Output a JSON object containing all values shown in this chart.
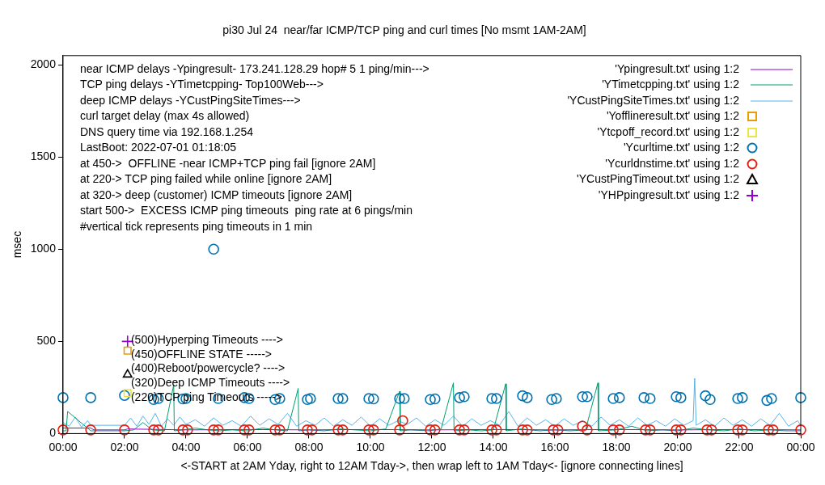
{
  "chart_data": {
    "type": "line",
    "title": "pi30 Jul 24  near/far ICMP/TCP ping and curl times [No msmt 1AM-2AM]",
    "xlabel": "<-START at 2AM Yday, right to 12AM Tday->, then wrap left to 1AM Tday<- [ignore connecting lines]",
    "ylabel": "msec",
    "xlim": [
      0,
      24
    ],
    "xticks": [
      {
        "value": 0,
        "label": "00:00"
      },
      {
        "value": 2,
        "label": "02:00"
      },
      {
        "value": 4,
        "label": "04:00"
      },
      {
        "value": 6,
        "label": "06:00"
      },
      {
        "value": 8,
        "label": "08:00"
      },
      {
        "value": 10,
        "label": "10:00"
      },
      {
        "value": 12,
        "label": "12:00"
      },
      {
        "value": 14,
        "label": "14:00"
      },
      {
        "value": 16,
        "label": "16:00"
      },
      {
        "value": 18,
        "label": "18:00"
      },
      {
        "value": 20,
        "label": "20:00"
      },
      {
        "value": 22,
        "label": "22:00"
      },
      {
        "value": 24,
        "label": "00:00"
      }
    ],
    "ylim": [
      0,
      2050
    ],
    "yticks": [
      0,
      500,
      1000,
      1500,
      2000
    ],
    "grid": false,
    "legend": "top right",
    "annotations": [
      "near ICMP delays -Ypingresult- 173.241.128.29 hop# 5 1 ping/min--->",
      "TCP ping delays -YTimetcpping- Top100Web--->",
      "deep ICMP delays -YCustPingSiteTimes--->",
      "curl target delay (max 4s allowed)",
      "DNS query time via 192.168.1.254",
      "LastBoot: 2022-07-01 01:18:05",
      "at 450->  OFFLINE -near ICMP+TCP ping fail [ignore 2AM]",
      "at 220-> TCP ping failed while online [ignore 2AM]",
      "at 320-> deep (customer) ICMP timeouts [ignore 2AM]",
      "start 500->  EXCESS ICMP ping timeouts  ping rate at 6 pings/min",
      "#vertical tick represents ping timeouts in 1 min",
      "(500)Hyperping Timeouts ---->",
      "(450)OFFLINE STATE ----->",
      "(400)Reboot/powercycle? ---->",
      "(320)Deep ICMP Timeouts ---->",
      "(220)TCP ping Timeouts ----->"
    ],
    "series": [
      {
        "name": "'Ypingresult.txt' using 1:2",
        "color": "#9400d3",
        "x": [
          0,
          0.9,
          1.0,
          2.0,
          2.1,
          4,
          6,
          8,
          10,
          12,
          14,
          16,
          18,
          20,
          22,
          24
        ],
        "values": [
          30,
          30,
          20,
          20,
          25,
          20,
          22,
          20,
          22,
          20,
          22,
          20,
          22,
          20,
          22,
          20
        ]
      },
      {
        "name": "'YTimetcpping.txt' using 1:2",
        "color": "#009e73",
        "x": [
          0,
          0.1,
          0.15,
          0.9,
          1.0,
          2.0,
          2.3,
          2.6,
          2.9,
          3.3,
          3.6,
          3.62,
          3.9,
          4.3,
          4.7,
          5.1,
          5.5,
          6.0,
          6.5,
          6.9,
          7.3,
          7.65,
          7.67,
          8.0,
          8.5,
          9.0,
          9.5,
          10.0,
          10.5,
          10.95,
          10.97,
          11.3,
          11.9,
          12.3,
          12.7,
          12.72,
          13.2,
          13.6,
          14.0,
          14.4,
          14.42,
          14.9,
          15.5,
          16.0,
          16.5,
          17.0,
          17.4,
          17.42,
          18.0,
          18.5,
          19.0,
          19.5,
          20.0,
          20.5,
          21.0,
          21.5,
          22.0,
          22.5,
          23.0,
          23.5,
          24.0
        ],
        "values": [
          15,
          15,
          120,
          15,
          15,
          15,
          20,
          60,
          20,
          15,
          265,
          15,
          20,
          30,
          20,
          15,
          20,
          15,
          30,
          20,
          15,
          245,
          15,
          20,
          15,
          25,
          20,
          15,
          25,
          230,
          15,
          20,
          15,
          25,
          275,
          15,
          20,
          15,
          20,
          270,
          15,
          25,
          15,
          20,
          15,
          20,
          275,
          15,
          20,
          40,
          15,
          20,
          15,
          30,
          20,
          15,
          25,
          15,
          20,
          15,
          15
        ]
      },
      {
        "name": "'YCustPingSiteTimes.txt' using 1:2",
        "color": "#56b4e9",
        "x": [
          0,
          0.2,
          0.4,
          0.6,
          0.8,
          0.9,
          2.0,
          2.2,
          2.4,
          2.6,
          2.8,
          3.0,
          3.2,
          3.4,
          3.6,
          3.8,
          4.0,
          4.3,
          4.6,
          4.9,
          5.2,
          5.5,
          5.8,
          6.1,
          6.4,
          6.7,
          7.0,
          7.3,
          7.6,
          7.9,
          8.2,
          8.5,
          8.8,
          9.1,
          9.4,
          9.7,
          10.0,
          10.3,
          10.6,
          10.9,
          11.2,
          11.5,
          11.8,
          12.1,
          12.4,
          12.7,
          13.0,
          13.3,
          13.6,
          13.9,
          14.2,
          14.5,
          14.8,
          15.1,
          15.4,
          15.7,
          16.0,
          16.3,
          16.6,
          16.9,
          17.2,
          17.5,
          17.8,
          18.1,
          18.4,
          18.7,
          19.0,
          19.3,
          19.6,
          19.9,
          20.2,
          20.5,
          20.55,
          20.6,
          20.9,
          21.2,
          21.5,
          21.8,
          22.1,
          22.4,
          22.7,
          23.0,
          23.3,
          23.6,
          23.9,
          24.0
        ],
        "values": [
          60,
          40,
          90,
          35,
          70,
          45,
          45,
          85,
          40,
          95,
          50,
          110,
          40,
          80,
          45,
          90,
          50,
          75,
          40,
          85,
          45,
          70,
          40,
          95,
          45,
          80,
          50,
          110,
          40,
          70,
          45,
          85,
          40,
          75,
          45,
          90,
          40,
          80,
          45,
          70,
          50,
          85,
          40,
          75,
          45,
          95,
          40,
          80,
          45,
          70,
          45,
          120,
          40,
          85,
          45,
          75,
          40,
          80,
          45,
          70,
          40,
          90,
          45,
          75,
          40,
          85,
          45,
          70,
          40,
          80,
          45,
          70,
          300,
          45,
          75,
          40,
          85,
          45,
          75,
          40,
          80,
          45,
          110,
          40,
          70,
          45
        ]
      },
      {
        "name": "'Yofflineresult.txt' using 1:2",
        "type": "scatter",
        "color": "#e69f00",
        "marker": "square",
        "x": [
          2.1
        ],
        "values": [
          450
        ]
      },
      {
        "name": "'Ytcpoff_record.txt' using 1:2",
        "type": "scatter",
        "color": "#f0e442",
        "marker": "square",
        "x": [
          2.1
        ],
        "values": [
          220
        ]
      },
      {
        "name": "'Ycurltime.txt' using 1:2",
        "type": "scatter",
        "color": "#0072b2",
        "marker": "circle",
        "x": [
          0,
          0.9,
          2.0,
          2.95,
          3.1,
          3.9,
          4.0,
          4.9,
          5.05,
          5.9,
          6.05,
          6.9,
          7.05,
          7.95,
          8.05,
          8.95,
          9.1,
          9.95,
          10.1,
          10.95,
          11.1,
          11.95,
          12.1,
          12.9,
          13.05,
          13.95,
          14.1,
          14.95,
          15.1,
          15.9,
          16.05,
          16.9,
          17.05,
          17.9,
          18.1,
          18.9,
          19.1,
          19.95,
          20.1,
          20.9,
          21.05,
          21.95,
          22.1,
          22.9,
          23.05,
          24
        ],
        "values": [
          195,
          195,
          207,
          185,
          190,
          188,
          190,
          1000,
          190,
          195,
          190,
          185,
          190,
          185,
          190,
          190,
          190,
          190,
          188,
          190,
          190,
          185,
          188,
          195,
          200,
          190,
          190,
          205,
          195,
          185,
          190,
          200,
          200,
          190,
          195,
          195,
          190,
          200,
          195,
          205,
          185,
          190,
          195,
          180,
          190,
          195
        ]
      },
      {
        "name": "'Ycurldnstime.txt' using 1:2",
        "type": "scatter",
        "color": "#e51e10",
        "marker": "circle",
        "x": [
          0,
          0.9,
          2.0,
          2.95,
          3.1,
          3.9,
          4.05,
          4.9,
          5.05,
          5.9,
          6.05,
          6.9,
          7.05,
          7.95,
          8.1,
          8.95,
          9.1,
          9.95,
          10.1,
          10.95,
          11.05,
          11.95,
          12.1,
          12.9,
          13.05,
          13.95,
          14.1,
          14.95,
          15.1,
          15.95,
          16.1,
          16.9,
          17.05,
          17.9,
          18.1,
          18.95,
          19.1,
          19.95,
          20.1,
          20.95,
          21.1,
          21.95,
          22.1,
          22.95,
          23.1,
          24
        ],
        "values": [
          20,
          20,
          20,
          20,
          20,
          20,
          20,
          20,
          20,
          20,
          20,
          20,
          20,
          20,
          20,
          20,
          20,
          20,
          20,
          20,
          70,
          20,
          20,
          20,
          20,
          20,
          20,
          20,
          20,
          20,
          20,
          40,
          20,
          20,
          20,
          20,
          20,
          20,
          20,
          20,
          20,
          20,
          20,
          20,
          20,
          20
        ]
      },
      {
        "name": "'YCustPingTimeout.txt' using 1:2",
        "type": "scatter",
        "color": "#000000",
        "marker": "triangle",
        "x": [
          2.1
        ],
        "values": [
          320
        ]
      },
      {
        "name": "'YHPpingresult.txt' using 1:2",
        "type": "scatter",
        "color": "#9400d3",
        "marker": "cross",
        "x": [
          2.1
        ],
        "values": [
          500
        ]
      }
    ]
  }
}
